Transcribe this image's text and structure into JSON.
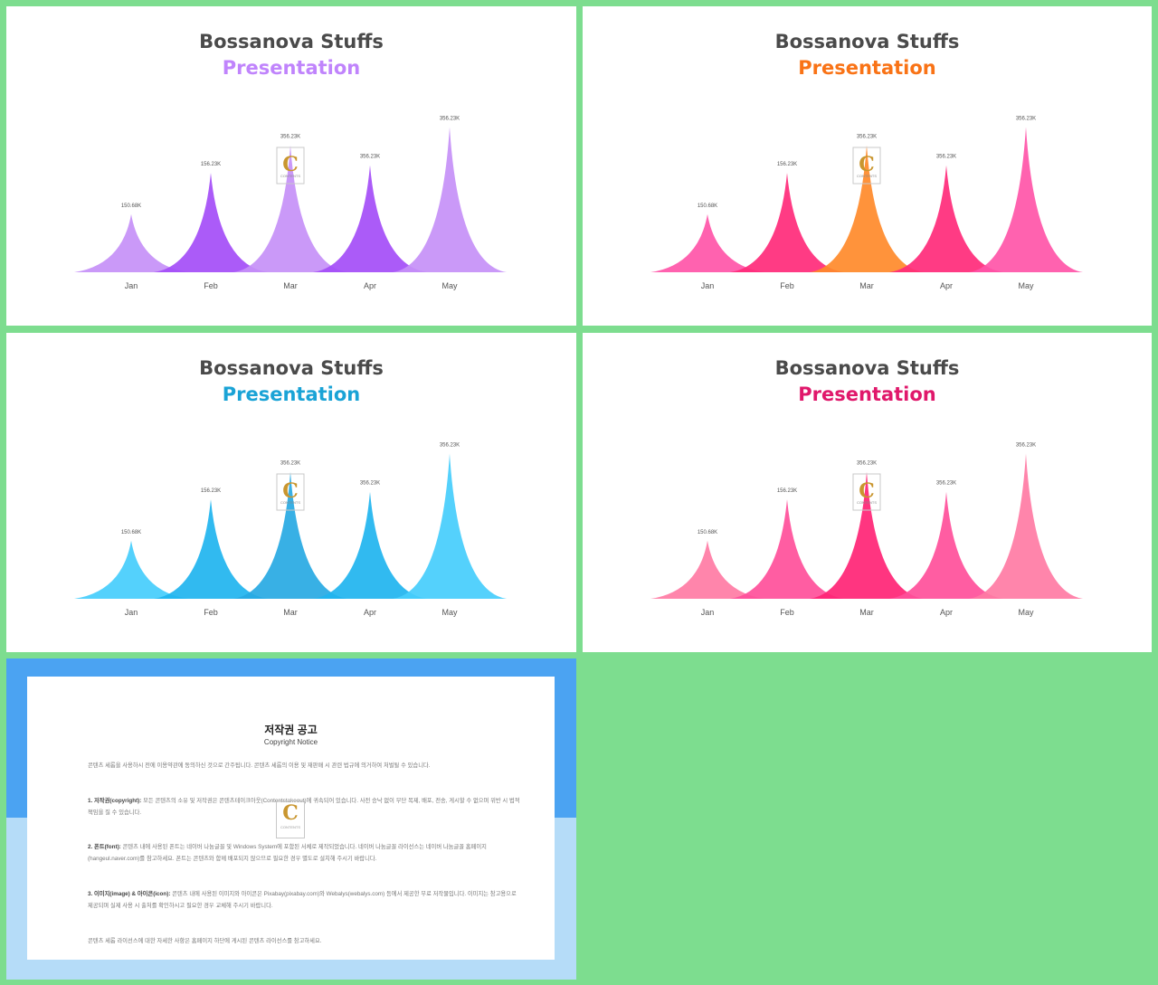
{
  "slides": [
    {
      "title_line1": "Bossanova Stuffs",
      "title_line2": "Presentation",
      "accent_color": "#c084fc",
      "peak_colors": [
        "#c590f7",
        "#a44df7",
        "#c590f7",
        "#a44df7",
        "#c590f7"
      ],
      "peak_opacity": 0.92
    },
    {
      "title_line1": "Bossanova Stuffs",
      "title_line2": "Presentation",
      "accent_color": "#f97316",
      "peak_colors": [
        "#ff55a8",
        "#ff2a7a",
        "#ff8a2a",
        "#ff2a7a",
        "#ff55a8"
      ],
      "peak_opacity": 0.92
    },
    {
      "title_line1": "Bossanova Stuffs",
      "title_line2": "Presentation",
      "accent_color": "#1aa3d6",
      "peak_colors": [
        "#45cdfc",
        "#1fb4ef",
        "#27a9e3",
        "#1fb4ef",
        "#45cdfc"
      ],
      "peak_opacity": 0.92
    },
    {
      "title_line1": "Bossanova Stuffs",
      "title_line2": "Presentation",
      "accent_color": "#e0186b",
      "peak_colors": [
        "#ff7ba4",
        "#ff4f9a",
        "#ff2475",
        "#ff4f9a",
        "#ff7ba4"
      ],
      "peak_opacity": 0.92
    }
  ],
  "chart_data": {
    "type": "area",
    "categories": [
      "Jan",
      "Feb",
      "Mar",
      "Apr",
      "May"
    ],
    "values": [
      150.68,
      156.23,
      356.23,
      356.23,
      356.23
    ],
    "data_labels": [
      "150.68K",
      "156.23K",
      "356.23K",
      "356.23K",
      "356.23K"
    ],
    "relative_heights": [
      0.38,
      0.65,
      0.83,
      0.7,
      0.95
    ],
    "grid": false
  },
  "watermark": {
    "letter": "C",
    "text": "CONTENTS"
  },
  "copyright": {
    "title": "저작권 공고",
    "subtitle": "Copyright Notice",
    "intro": "콘텐츠 세롭을 사용하시 전에 이용약관에 동의하신 것으로 간주됩니다. 콘텐츠 세롭의 이용 및 재판매 시 관련 법규에 의거하여 처벌될 수 있습니다.",
    "section1_head": "1. 저작권(copyright):",
    "section1_body": " 모든 콘텐츠의 소유 및 저작권은 콘텐츠테이크아웃(Contentstakeout)에 귀속되어 있습니다. 사전 승낙 없이 무단 복제, 배포, 전송, 게시할 수 없으며 위반 시 법적 책임을 질 수 있습니다.",
    "section2_head": "2. 폰트(font):",
    "section2_body": " 콘텐츠 내에 사용된 폰트는 네이버 나눔글꼴 및 Windows System에 포함된 서체로 제작되었습니다. 네이버 나눔글꼴 라이선스는 네이버 나눔글꼴 홈페이지(hangeul.naver.com)를 참고하세요. 폰트는 콘텐츠와 함께 배포되지 않으므로 필요한 경우 별도로 설치해 주시기 바랍니다.",
    "section3_head": "3. 이미지(image) & 아이콘(icon):",
    "section3_body": " 콘텐츠 내에 사용된 이미지와 아이콘은 Pixabay(pixabay.com)와 Webalys(webalys.com) 등에서 제공한 무료 저작물입니다. 이미지는 참고용으로 제공되며 실제 사용 시 출처를 확인하시고 필요한 경우 교체해 주시기 바랍니다.",
    "footer": "콘텐츠 세롭 라이선스에 대한 자세한 사항은 홈페이지 하단에 게시된 콘텐츠 라이선스를 참고하세요."
  }
}
